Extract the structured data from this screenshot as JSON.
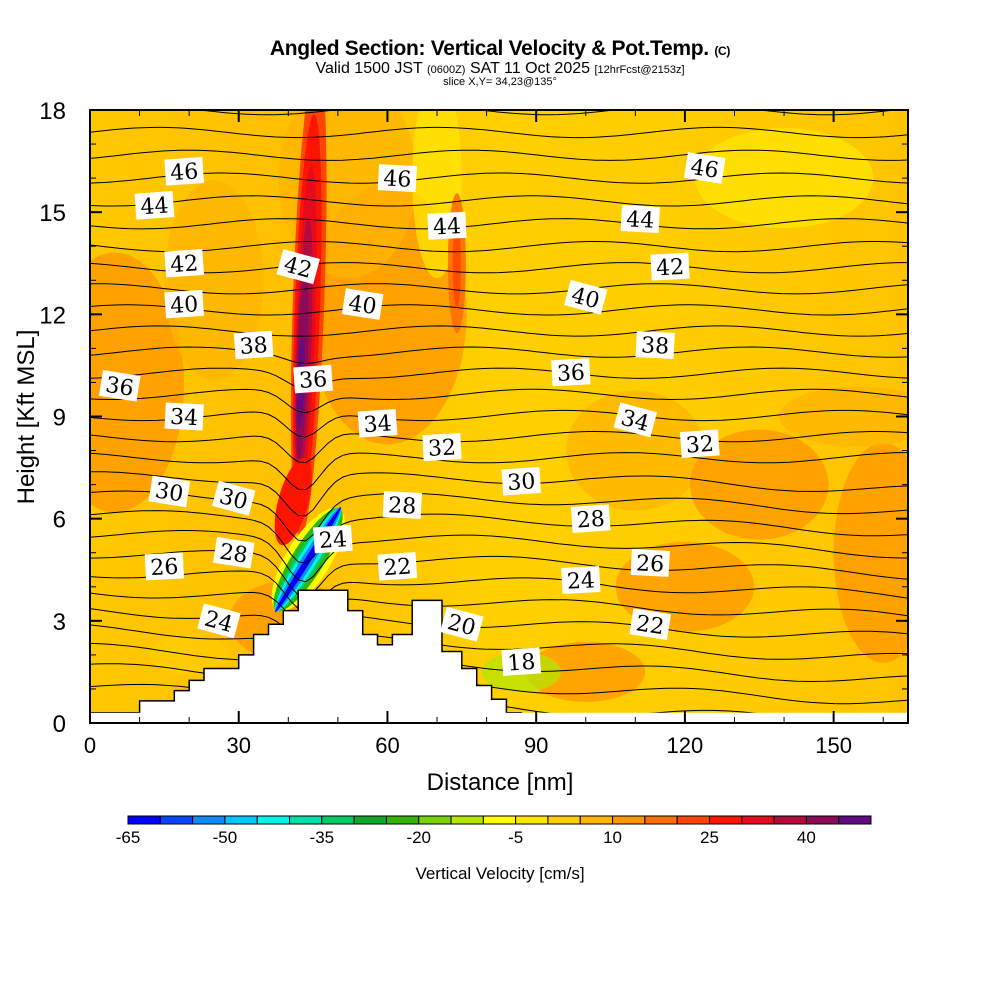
{
  "title": {
    "main": "Angled Section: Vertical Velocity & Pot.Temp.",
    "copyright": "(C)",
    "valid_prefix": "Valid 1500 JST",
    "valid_utc": "(0600Z)",
    "valid_date": "SAT 11 Oct 2025",
    "forecast": "[12hrFcst@2153z]",
    "slice": "slice X,Y= 34,23@135°"
  },
  "chart_data": {
    "type": "heatmap",
    "title": "Angled Section: Vertical Velocity & Pot.Temp.",
    "xlabel": "Distance [nm]",
    "ylabel": "Height [Kft MSL]",
    "xlim": [
      0,
      165
    ],
    "ylim": [
      0,
      18
    ],
    "xticks": [
      0,
      30,
      60,
      90,
      120,
      150
    ],
    "yticks": [
      0,
      3,
      6,
      9,
      12,
      15,
      18
    ],
    "colorbar": {
      "label": "Vertical Velocity [cm/s]",
      "tick_labels": [
        "-65",
        "-50",
        "-35",
        "-20",
        "-5",
        "10",
        "25",
        "40"
      ],
      "levels": [
        -65,
        -60,
        -55,
        -50,
        -45,
        -40,
        -35,
        -30,
        -25,
        -20,
        -15,
        -10,
        -5,
        0,
        5,
        10,
        15,
        20,
        25,
        30,
        35,
        40,
        45
      ],
      "colors": [
        "#0000ff",
        "#0a46ff",
        "#0a8cff",
        "#00c8ff",
        "#00f5e6",
        "#00e0a8",
        "#00cc66",
        "#0aaa28",
        "#32b400",
        "#78d200",
        "#b4e600",
        "#ffff00",
        "#ffe600",
        "#ffcd00",
        "#ffb400",
        "#ff9600",
        "#ff6e00",
        "#ff4600",
        "#ff1400",
        "#e60a1e",
        "#b40a3c",
        "#8c0a5a",
        "#640a82"
      ]
    },
    "theta_contour_labels": [
      {
        "value": 46,
        "x": 19,
        "y": 16.2
      },
      {
        "value": 46,
        "x": 62,
        "y": 16.0
      },
      {
        "value": 46,
        "x": 124,
        "y": 16.3
      },
      {
        "value": 44,
        "x": 13,
        "y": 15.2
      },
      {
        "value": 44,
        "x": 72,
        "y": 14.6
      },
      {
        "value": 44,
        "x": 111,
        "y": 14.8
      },
      {
        "value": 42,
        "x": 19,
        "y": 13.5
      },
      {
        "value": 42,
        "x": 42,
        "y": 13.4
      },
      {
        "value": 42,
        "x": 117,
        "y": 13.4
      },
      {
        "value": 40,
        "x": 19,
        "y": 12.3
      },
      {
        "value": 40,
        "x": 55,
        "y": 12.3
      },
      {
        "value": 40,
        "x": 100,
        "y": 12.5
      },
      {
        "value": 38,
        "x": 33,
        "y": 11.1
      },
      {
        "value": 38,
        "x": 114,
        "y": 11.1
      },
      {
        "value": 36,
        "x": 6,
        "y": 9.9
      },
      {
        "value": 36,
        "x": 45,
        "y": 10.1
      },
      {
        "value": 36,
        "x": 97,
        "y": 10.3
      },
      {
        "value": 34,
        "x": 19,
        "y": 9.0
      },
      {
        "value": 34,
        "x": 58,
        "y": 8.8
      },
      {
        "value": 34,
        "x": 110,
        "y": 8.9
      },
      {
        "value": 32,
        "x": 71,
        "y": 8.1
      },
      {
        "value": 32,
        "x": 123,
        "y": 8.2
      },
      {
        "value": 30,
        "x": 16,
        "y": 6.8
      },
      {
        "value": 30,
        "x": 29,
        "y": 6.6
      },
      {
        "value": 30,
        "x": 87,
        "y": 7.1
      },
      {
        "value": 28,
        "x": 63,
        "y": 6.4
      },
      {
        "value": 28,
        "x": 29,
        "y": 5.0
      },
      {
        "value": 28,
        "x": 101,
        "y": 6.0
      },
      {
        "value": 26,
        "x": 15,
        "y": 4.6
      },
      {
        "value": 26,
        "x": 113,
        "y": 4.7
      },
      {
        "value": 24,
        "x": 49,
        "y": 5.4
      },
      {
        "value": 24,
        "x": 26,
        "y": 3.0
      },
      {
        "value": 24,
        "x": 99,
        "y": 4.2
      },
      {
        "value": 22,
        "x": 62,
        "y": 4.6
      },
      {
        "value": 22,
        "x": 113,
        "y": 2.9
      },
      {
        "value": 20,
        "x": 75,
        "y": 2.9
      },
      {
        "value": 18,
        "x": 87,
        "y": 1.8
      }
    ],
    "terrain_steps": [
      [
        0,
        0.3
      ],
      [
        10,
        0.3
      ],
      [
        10,
        0.65
      ],
      [
        17,
        0.65
      ],
      [
        17,
        0.95
      ],
      [
        20,
        0.95
      ],
      [
        20,
        1.25
      ],
      [
        23,
        1.25
      ],
      [
        23,
        1.6
      ],
      [
        30,
        1.6
      ],
      [
        30,
        2.0
      ],
      [
        33,
        2.0
      ],
      [
        33,
        2.6
      ],
      [
        36,
        2.6
      ],
      [
        36,
        2.9
      ],
      [
        39,
        2.9
      ],
      [
        39,
        3.3
      ],
      [
        42,
        3.3
      ],
      [
        42,
        3.9
      ],
      [
        52,
        3.9
      ],
      [
        52,
        3.3
      ],
      [
        55,
        3.3
      ],
      [
        55,
        2.6
      ],
      [
        58,
        2.6
      ],
      [
        58,
        2.3
      ],
      [
        61,
        2.3
      ],
      [
        61,
        2.6
      ],
      [
        65,
        2.6
      ],
      [
        65,
        3.6
      ],
      [
        71,
        3.6
      ],
      [
        71,
        2.1
      ],
      [
        75,
        2.1
      ],
      [
        75,
        1.6
      ],
      [
        78,
        1.6
      ],
      [
        78,
        1.1
      ],
      [
        81,
        1.1
      ],
      [
        81,
        0.7
      ],
      [
        84,
        0.7
      ],
      [
        84,
        0.3
      ],
      [
        87,
        0.3
      ],
      [
        87,
        0.0
      ]
    ],
    "updraft_core": {
      "x": 44,
      "y_range": [
        7,
        18
      ],
      "max_cm_s": 45
    },
    "downdraft_core": {
      "x": 42,
      "y_range": [
        2.5,
        6
      ],
      "min_cm_s": -65
    }
  }
}
